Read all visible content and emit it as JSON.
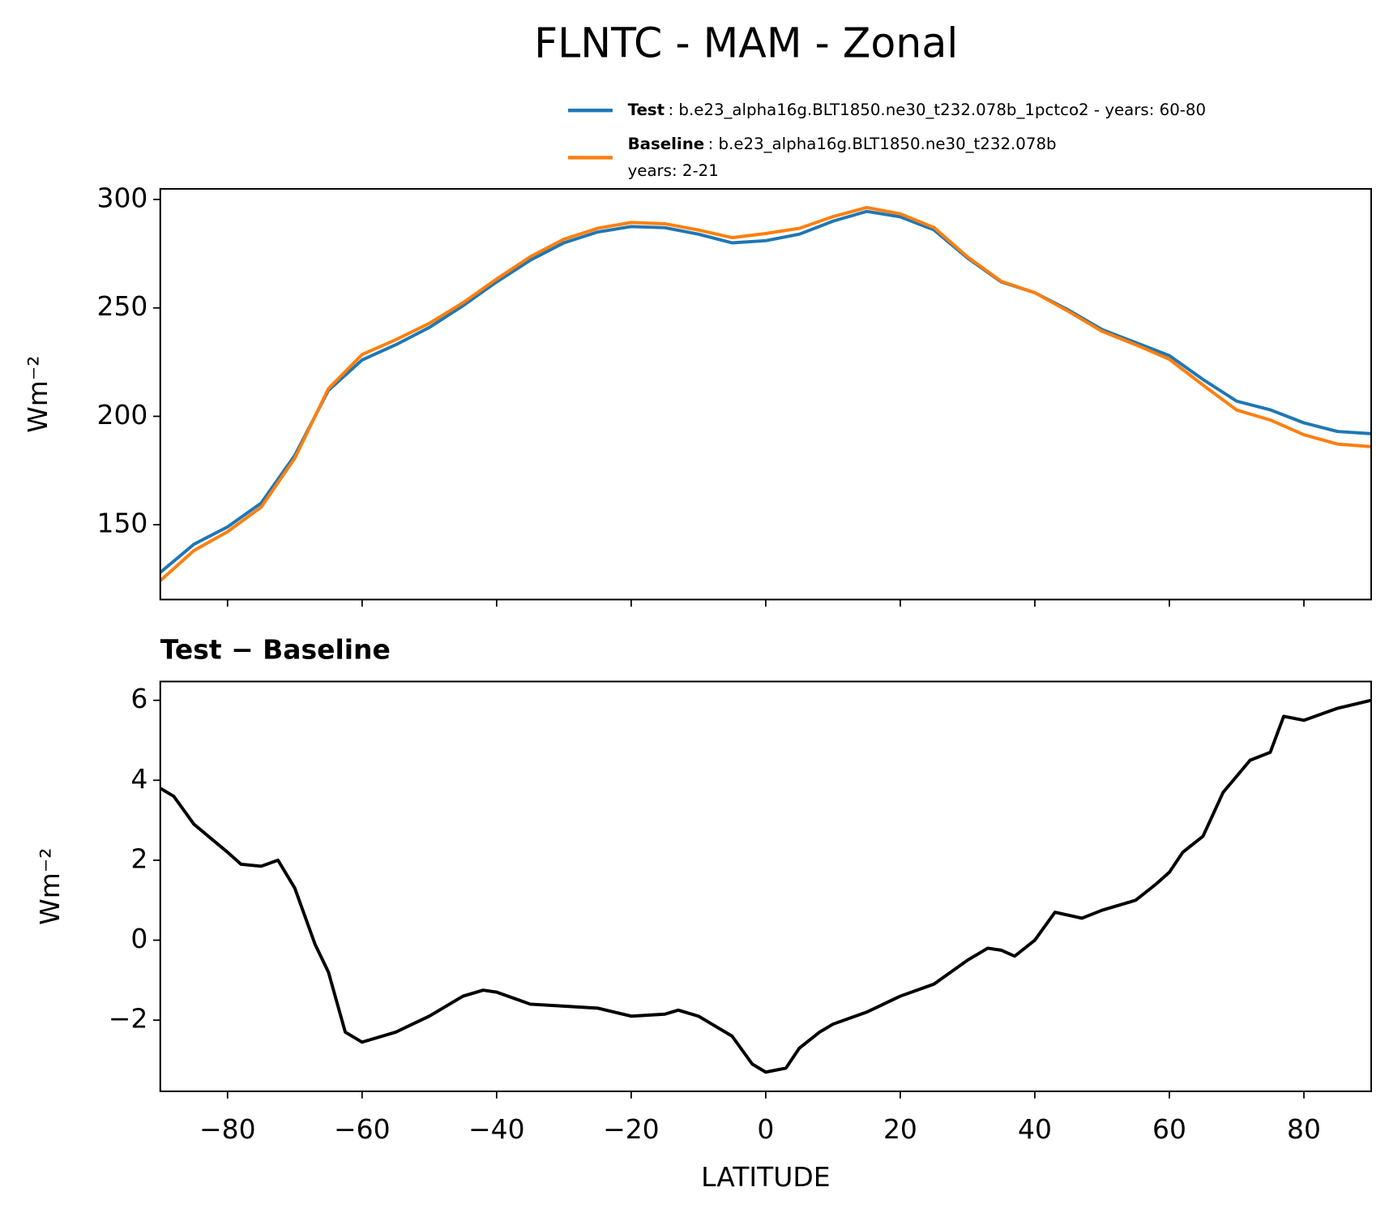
{
  "chart_data": [
    {
      "type": "line",
      "title": "FLNTC - MAM - Zonal",
      "ylabel": "Wm⁻²",
      "x": [
        -90,
        -85,
        -80,
        -75,
        -70,
        -65,
        -60,
        -55,
        -50,
        -45,
        -40,
        -35,
        -30,
        -25,
        -20,
        -15,
        -10,
        -5,
        0,
        5,
        10,
        15,
        20,
        25,
        30,
        35,
        40,
        45,
        50,
        55,
        60,
        65,
        70,
        75,
        80,
        85,
        90
      ],
      "series": [
        {
          "name": "Test",
          "description": [
            ": b.e23_alpha16g.BLT1850.ne30_t232.078b_1pctco2 - years: 60-80"
          ],
          "color": "#1f77b4",
          "values": [
            128,
            141,
            149,
            160,
            182,
            212,
            226,
            233,
            241,
            251,
            262,
            272,
            280,
            285,
            287.5,
            287,
            284,
            280,
            281,
            284,
            290,
            294.5,
            292,
            286,
            273,
            262,
            257,
            249,
            240,
            234,
            228,
            217,
            207,
            203,
            197,
            193,
            192
          ]
        },
        {
          "name": "Baseline",
          "description": [
            ": b.e23_alpha16g.BLT1850.ne30_t232.078b",
            "years: 2-21"
          ],
          "color": "#ff7f0e",
          "values": [
            124.2,
            138.1,
            146.8,
            158.1,
            180.7,
            212.8,
            228.5,
            235.3,
            242.9,
            252.4,
            263.3,
            273.6,
            281.7,
            286.7,
            289.4,
            288.8,
            285.9,
            282.4,
            284.3,
            286.7,
            292.1,
            296.3,
            293.4,
            287.1,
            273.5,
            262.3,
            257,
            248.4,
            239.2,
            233,
            226.3,
            214.4,
            202.9,
            198.3,
            191.5,
            187.2,
            186
          ]
        }
      ],
      "xlim": [
        -90,
        90
      ],
      "ylim": [
        115.5,
        304.9
      ],
      "xticks": [
        -80,
        -60,
        -40,
        -20,
        0,
        20,
        40,
        60,
        80
      ],
      "yticks": [
        150,
        200,
        250,
        300
      ]
    },
    {
      "type": "line",
      "title": "Test − Baseline",
      "ylabel": "Wm⁻²",
      "xlabel": "LATITUDE",
      "x": [
        -90,
        -88,
        -85,
        -80,
        -78,
        -75,
        -72.5,
        -70,
        -67,
        -65,
        -62.5,
        -60,
        -55,
        -50,
        -45,
        -42,
        -40,
        -35,
        -30,
        -25,
        -20,
        -15,
        -13,
        -10,
        -5,
        -2,
        0,
        3,
        5,
        8,
        10,
        15,
        20,
        25,
        30,
        33,
        35,
        37,
        40,
        43,
        47,
        50,
        55,
        58,
        60,
        62,
        65,
        68,
        70,
        72,
        75,
        77,
        80,
        85,
        90
      ],
      "series": [
        {
          "color": "#000000",
          "values": [
            3.8,
            3.6,
            2.9,
            2.2,
            1.9,
            1.85,
            2.0,
            1.3,
            -0.1,
            -0.8,
            -2.3,
            -2.55,
            -2.3,
            -1.9,
            -1.4,
            -1.25,
            -1.3,
            -1.6,
            -1.65,
            -1.7,
            -1.9,
            -1.85,
            -1.75,
            -1.9,
            -2.4,
            -3.1,
            -3.3,
            -3.2,
            -2.7,
            -2.3,
            -2.1,
            -1.8,
            -1.4,
            -1.1,
            -0.5,
            -0.2,
            -0.25,
            -0.4,
            0,
            0.7,
            0.55,
            0.75,
            1.0,
            1.4,
            1.7,
            2.2,
            2.6,
            3.7,
            4.1,
            4.5,
            4.7,
            5.6,
            5.5,
            5.8,
            6.0
          ]
        }
      ],
      "xlim": [
        -90,
        90
      ],
      "ylim": [
        -3.78,
        6.47
      ],
      "xticks": [
        {
          "value": -80,
          "label": "−80"
        },
        {
          "value": -60,
          "label": "−60"
        },
        {
          "value": -40,
          "label": "−40"
        },
        {
          "value": -20,
          "label": "−20"
        },
        0,
        20,
        40,
        60,
        80
      ],
      "yticks": [
        {
          "value": -2,
          "label": "−2"
        },
        0,
        2,
        4,
        6
      ]
    }
  ]
}
